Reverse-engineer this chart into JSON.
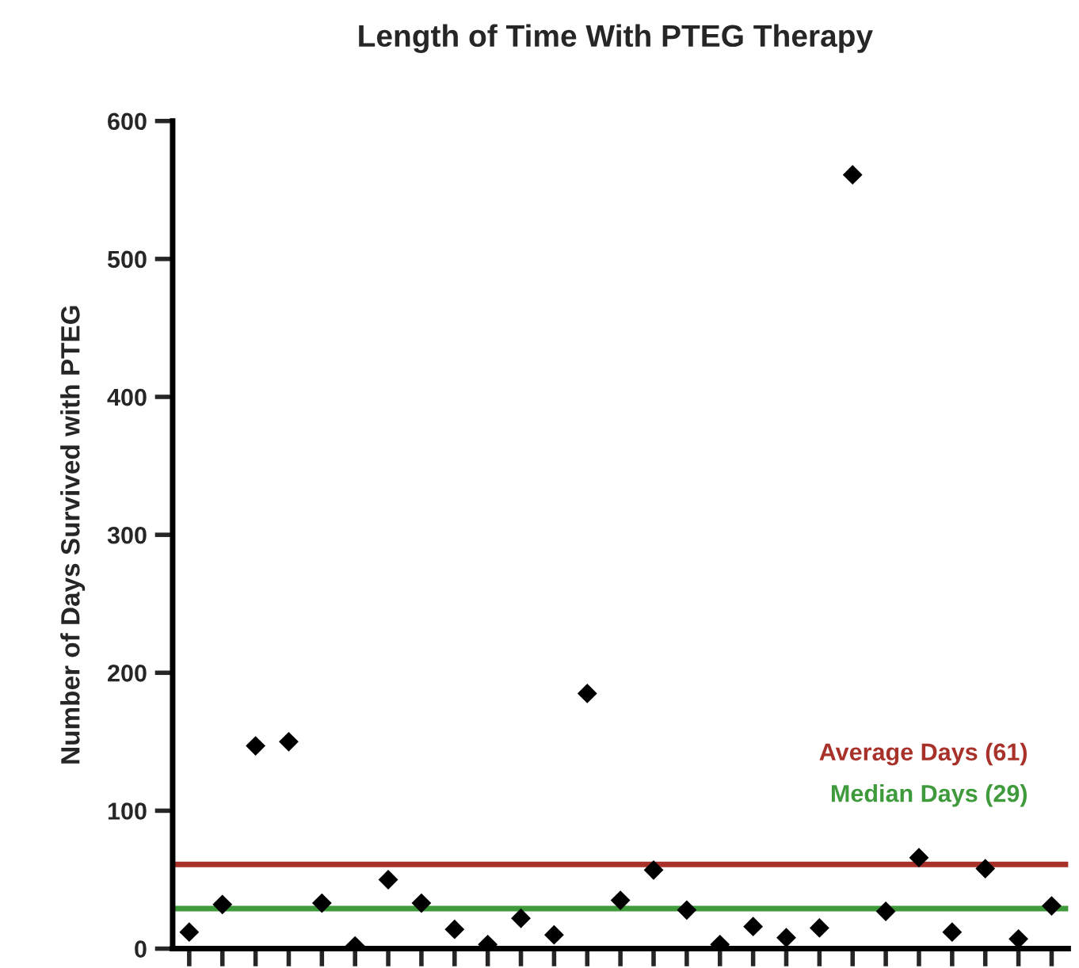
{
  "chart_data": {
    "type": "scatter",
    "title": "Length of Time With PTEG Therapy",
    "ylabel": "Number of Days Survived with PTEG",
    "categories": [
      null,
      null,
      null,
      null,
      null,
      null,
      null,
      null,
      null,
      null,
      null,
      null,
      null,
      null,
      null,
      null,
      null,
      null,
      null,
      null,
      null,
      null,
      null,
      null,
      null,
      null,
      null
    ],
    "series": [
      {
        "color": "#000000",
        "values": [
          12,
          32,
          147,
          150,
          33,
          2,
          50,
          33,
          14,
          3,
          22,
          10,
          185,
          35,
          57,
          28,
          3,
          16,
          8,
          15,
          561,
          27,
          66,
          12,
          58,
          7,
          31
        ]
      }
    ],
    "marker": "diamond",
    "ylim": [
      0,
      600
    ],
    "yticks": [
      0,
      100,
      200,
      300,
      400,
      500,
      600
    ],
    "grid": false,
    "legend": false,
    "ref_lines": [
      {
        "axis": "y",
        "value": 61,
        "label": "Average Days (61)",
        "color": "#a8322a"
      },
      {
        "axis": "y",
        "value": 29,
        "label": "Median Days (29)",
        "color": "#3f9a3c"
      }
    ]
  }
}
